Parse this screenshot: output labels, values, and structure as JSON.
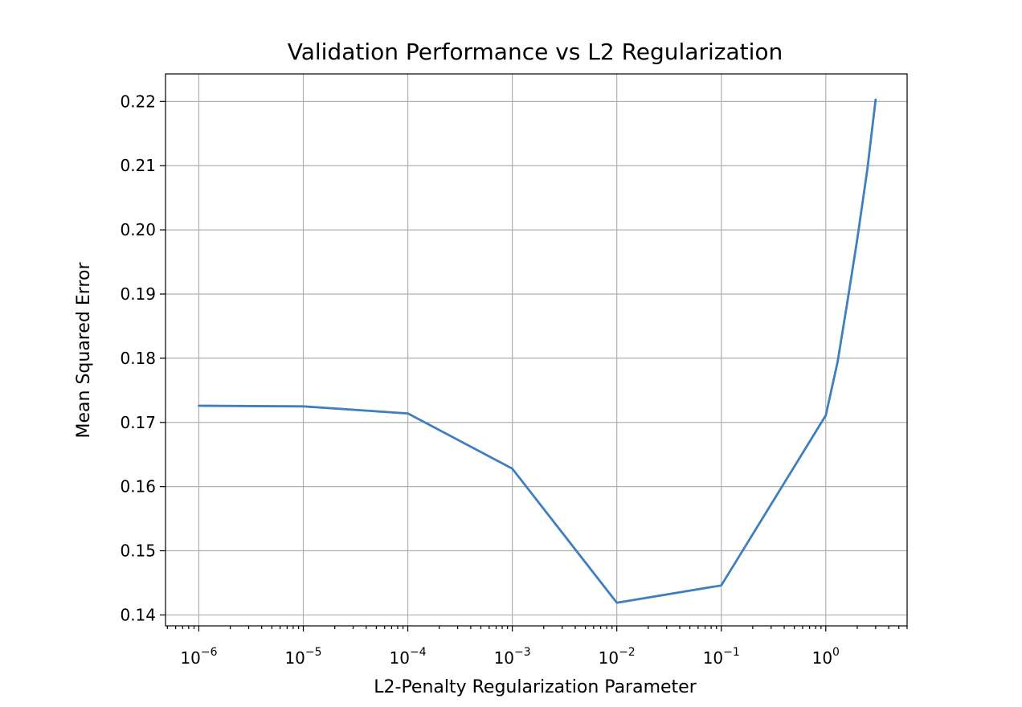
{
  "chart_data": {
    "type": "line",
    "title": "Validation Performance vs L2 Regularization",
    "xlabel": "L2-Penalty Regularization Parameter",
    "ylabel": "Mean Squared Error",
    "x_scale": "log",
    "xlim": [
      4.8e-07,
      6.0
    ],
    "ylim": [
      0.1383,
      0.2243
    ],
    "grid": true,
    "legend": "none",
    "x_ticks": [
      {
        "value": 1e-06,
        "base": "10",
        "exp": "−6"
      },
      {
        "value": 1e-05,
        "base": "10",
        "exp": "−5"
      },
      {
        "value": 0.0001,
        "base": "10",
        "exp": "−4"
      },
      {
        "value": 0.001,
        "base": "10",
        "exp": "−3"
      },
      {
        "value": 0.01,
        "base": "10",
        "exp": "−2"
      },
      {
        "value": 0.1,
        "base": "10",
        "exp": "−1"
      },
      {
        "value": 1,
        "base": "10",
        "exp": "0"
      }
    ],
    "y_ticks": [
      {
        "value": 0.14,
        "label": "0.14"
      },
      {
        "value": 0.15,
        "label": "0.15"
      },
      {
        "value": 0.16,
        "label": "0.16"
      },
      {
        "value": 0.17,
        "label": "0.17"
      },
      {
        "value": 0.18,
        "label": "0.18"
      },
      {
        "value": 0.19,
        "label": "0.19"
      },
      {
        "value": 0.2,
        "label": "0.20"
      },
      {
        "value": 0.21,
        "label": "0.21"
      },
      {
        "value": 0.22,
        "label": "0.22"
      }
    ],
    "series": [
      {
        "color": "#3f7fbf",
        "x": [
          1e-06,
          1e-05,
          0.0001,
          0.001,
          0.01,
          0.1,
          1,
          1.3,
          1.6,
          2.0,
          2.5,
          3.0
        ],
        "y": [
          0.1726,
          0.1725,
          0.1714,
          0.1628,
          0.1419,
          0.1446,
          0.1711,
          0.1795,
          0.1885,
          0.1985,
          0.2095,
          0.2203
        ]
      }
    ]
  }
}
